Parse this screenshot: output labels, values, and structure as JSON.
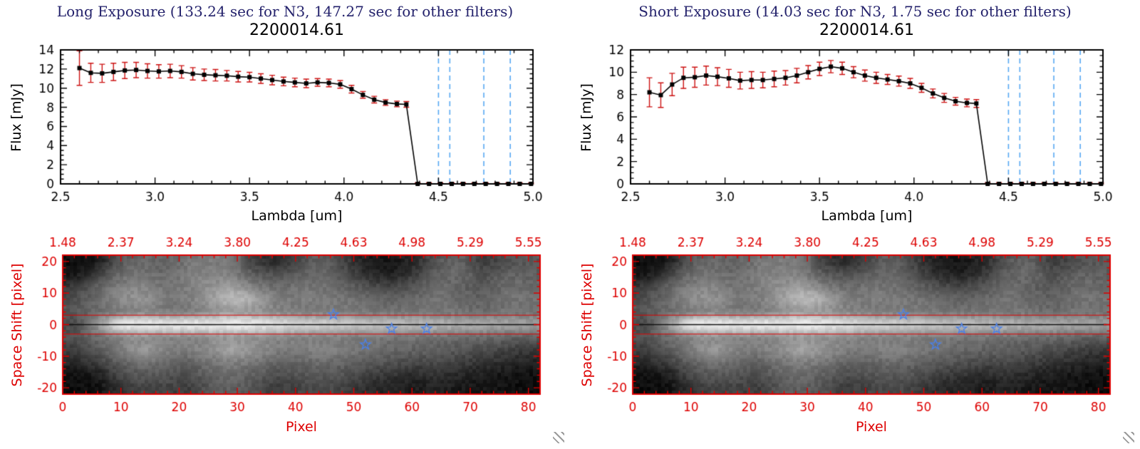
{
  "window": {
    "background": "#ffffff"
  },
  "chart_data": [
    {
      "type": "line",
      "panel_title": "Long Exposure (133.24 sec for N3, 147.27 sec for other filters)",
      "title": "2200014.61",
      "xlabel": "Lambda [um]",
      "ylabel": "Flux [mJy]",
      "xlim": [
        2.5,
        5.0
      ],
      "ylim": [
        0,
        14
      ],
      "xticks": [
        2.5,
        3.0,
        3.5,
        4.0,
        4.5,
        5.0
      ],
      "yticks": [
        0,
        2,
        4,
        6,
        8,
        10,
        12,
        14
      ],
      "x": [
        2.6,
        2.66,
        2.72,
        2.78,
        2.84,
        2.9,
        2.96,
        3.02,
        3.08,
        3.14,
        3.2,
        3.26,
        3.32,
        3.38,
        3.44,
        3.5,
        3.56,
        3.62,
        3.68,
        3.74,
        3.8,
        3.86,
        3.92,
        3.98,
        4.04,
        4.1,
        4.16,
        4.22,
        4.28,
        4.33,
        4.39,
        4.45,
        4.51,
        4.57,
        4.63,
        4.69,
        4.75,
        4.81,
        4.87,
        4.93,
        4.99
      ],
      "y": [
        12.1,
        11.6,
        11.55,
        11.7,
        11.85,
        11.9,
        11.8,
        11.75,
        11.8,
        11.7,
        11.5,
        11.4,
        11.35,
        11.3,
        11.2,
        11.15,
        11.0,
        10.85,
        10.7,
        10.6,
        10.5,
        10.6,
        10.55,
        10.4,
        9.9,
        9.3,
        8.8,
        8.5,
        8.35,
        8.3,
        0,
        0,
        0,
        0,
        0,
        0,
        0,
        0,
        0,
        0,
        0
      ],
      "yerr": [
        1.8,
        1.0,
        0.95,
        0.9,
        0.85,
        0.8,
        0.75,
        0.7,
        0.7,
        0.65,
        0.65,
        0.6,
        0.6,
        0.55,
        0.55,
        0.5,
        0.5,
        0.5,
        0.45,
        0.45,
        0.45,
        0.4,
        0.4,
        0.4,
        0.4,
        0.35,
        0.35,
        0.3,
        0.3,
        0.3,
        0.12,
        0.12,
        0.12,
        0.12,
        0.12,
        0.12,
        0.12,
        0.12,
        0.12,
        0.12,
        0.12
      ],
      "dashed_lines_x": [
        4.5,
        4.56,
        4.74,
        4.88
      ],
      "colors": {
        "line": "#000000",
        "marker": "#000000",
        "err": "#cc1111",
        "dashed": "#58a8f2"
      },
      "legend": null,
      "grid": "off"
    },
    {
      "type": "line",
      "panel_title": "Short Exposure (14.03 sec for N3, 1.75 sec for other filters)",
      "title": "2200014.61",
      "xlabel": "Lambda [um]",
      "ylabel": "Flux [mJy]",
      "xlim": [
        2.5,
        5.0
      ],
      "ylim": [
        0,
        12
      ],
      "xticks": [
        2.5,
        3.0,
        3.5,
        4.0,
        4.5,
        5.0
      ],
      "yticks": [
        0,
        2,
        4,
        6,
        8,
        10,
        12
      ],
      "x": [
        2.6,
        2.66,
        2.72,
        2.78,
        2.84,
        2.9,
        2.96,
        3.02,
        3.08,
        3.14,
        3.2,
        3.26,
        3.32,
        3.38,
        3.44,
        3.5,
        3.56,
        3.62,
        3.68,
        3.74,
        3.8,
        3.86,
        3.92,
        3.98,
        4.04,
        4.1,
        4.16,
        4.22,
        4.28,
        4.33,
        4.39,
        4.45,
        4.51,
        4.57,
        4.63,
        4.69,
        4.75,
        4.81,
        4.87,
        4.93,
        4.99
      ],
      "y": [
        8.2,
        7.95,
        8.9,
        9.5,
        9.55,
        9.7,
        9.6,
        9.45,
        9.25,
        9.3,
        9.3,
        9.4,
        9.5,
        9.7,
        10.0,
        10.3,
        10.5,
        10.35,
        10.0,
        9.7,
        9.5,
        9.35,
        9.2,
        9.0,
        8.6,
        8.1,
        7.7,
        7.4,
        7.25,
        7.2,
        0,
        0,
        0,
        0,
        0,
        0,
        0,
        0,
        0,
        0,
        0
      ],
      "yerr": [
        1.3,
        1.1,
        1.0,
        0.95,
        0.9,
        0.85,
        0.8,
        0.8,
        0.75,
        0.75,
        0.7,
        0.7,
        0.65,
        0.65,
        0.6,
        0.6,
        0.55,
        0.55,
        0.5,
        0.5,
        0.5,
        0.45,
        0.45,
        0.45,
        0.4,
        0.4,
        0.4,
        0.35,
        0.35,
        0.35,
        0.12,
        0.12,
        0.12,
        0.12,
        0.12,
        0.12,
        0.12,
        0.12,
        0.12,
        0.12,
        0.12
      ],
      "dashed_lines_x": [
        4.5,
        4.56,
        4.74,
        4.88
      ],
      "colors": {
        "line": "#000000",
        "marker": "#000000",
        "err": "#cc1111",
        "dashed": "#58a8f2"
      },
      "legend": null,
      "grid": "off"
    },
    {
      "type": "heatmap",
      "shown_in_panels": [
        0,
        1
      ],
      "xlabel": "Pixel",
      "ylabel": "Space Shift [pixel]",
      "xlim": [
        0,
        82
      ],
      "ylim": [
        -22,
        22
      ],
      "xticks": [
        0,
        10,
        20,
        30,
        40,
        50,
        60,
        70,
        80
      ],
      "yticks": [
        -20,
        -10,
        0,
        10,
        20
      ],
      "top_axis_labels": [
        "1.48",
        "2.37",
        "3.24",
        "3.80",
        "4.25",
        "4.63",
        "4.98",
        "5.29",
        "5.55"
      ],
      "aperture_lines_y": [
        3,
        -3
      ],
      "center_line_y": 0,
      "stars": [
        [
          46.5,
          3.2
        ],
        [
          56.5,
          -1.3
        ],
        [
          62.5,
          -1.3
        ],
        [
          52.0,
          -6.3
        ]
      ],
      "axis_color": "#dd0000",
      "star_color": "#4a80e8",
      "grid_cols_x_step": 4,
      "grid": [
        [
          5,
          15,
          80,
          105,
          95,
          115,
          125,
          115,
          55,
          35,
          75,
          95,
          55,
          20,
          15,
          35,
          85,
          95,
          55,
          75,
          85
        ],
        [
          10,
          55,
          105,
          115,
          105,
          125,
          135,
          125,
          85,
          75,
          95,
          105,
          75,
          35,
          25,
          55,
          95,
          105,
          75,
          95,
          95
        ],
        [
          55,
          95,
          125,
          135,
          115,
          125,
          145,
          160,
          125,
          105,
          115,
          115,
          95,
          75,
          65,
          85,
          105,
          95,
          85,
          105,
          105
        ],
        [
          75,
          105,
          140,
          150,
          125,
          125,
          160,
          195,
          170,
          125,
          125,
          125,
          115,
          105,
          95,
          105,
          115,
          105,
          95,
          115,
          115
        ],
        [
          85,
          105,
          125,
          135,
          125,
          125,
          145,
          160,
          150,
          135,
          125,
          125,
          125,
          115,
          115,
          115,
          115,
          115,
          105,
          115,
          115
        ],
        [
          70,
          150,
          250,
          255,
          255,
          255,
          255,
          255,
          250,
          240,
          230,
          222,
          214,
          206,
          200,
          194,
          188,
          182,
          176,
          170,
          165
        ],
        [
          80,
          105,
          135,
          145,
          135,
          135,
          145,
          152,
          147,
          137,
          132,
          128,
          126,
          122,
          118,
          116,
          112,
          108,
          104,
          99,
          95
        ],
        [
          55,
          85,
          125,
          158,
          135,
          125,
          145,
          168,
          148,
          125,
          128,
          132,
          122,
          112,
          102,
          97,
          92,
          82,
          72,
          62,
          52
        ],
        [
          35,
          55,
          95,
          115,
          105,
          95,
          115,
          128,
          115,
          95,
          100,
          107,
          97,
          87,
          77,
          67,
          67,
          57,
          47,
          37,
          27
        ],
        [
          8,
          18,
          65,
          85,
          80,
          75,
          95,
          105,
          90,
          75,
          80,
          87,
          77,
          57,
          47,
          37,
          42,
          32,
          22,
          12,
          8
        ],
        [
          4,
          8,
          45,
          65,
          65,
          55,
          85,
          95,
          75,
          55,
          65,
          72,
          57,
          37,
          27,
          22,
          27,
          17,
          12,
          8,
          4
        ]
      ]
    }
  ]
}
